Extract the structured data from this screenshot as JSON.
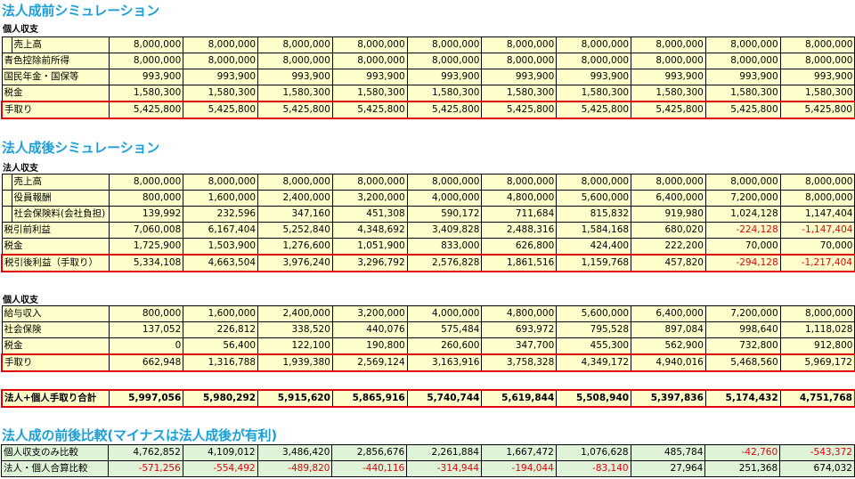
{
  "sec1": {
    "title": "法人成前シミュレーション",
    "sub": "個人収支",
    "rows": [
      {
        "label": "売上高",
        "indent": true,
        "highlight": false,
        "values": [
          "8,000,000",
          "8,000,000",
          "8,000,000",
          "8,000,000",
          "8,000,000",
          "8,000,000",
          "8,000,000",
          "8,000,000",
          "8,000,000",
          "8,000,000"
        ]
      },
      {
        "label": "青色控除前所得",
        "indent": false,
        "highlight": false,
        "values": [
          "8,000,000",
          "8,000,000",
          "8,000,000",
          "8,000,000",
          "8,000,000",
          "8,000,000",
          "8,000,000",
          "8,000,000",
          "8,000,000",
          "8,000,000"
        ]
      },
      {
        "label": "国民年金・国保等",
        "indent": false,
        "highlight": false,
        "values": [
          "993,900",
          "993,900",
          "993,900",
          "993,900",
          "993,900",
          "993,900",
          "993,900",
          "993,900",
          "993,900",
          "993,900"
        ]
      },
      {
        "label": "税金",
        "indent": false,
        "highlight": false,
        "values": [
          "1,580,300",
          "1,580,300",
          "1,580,300",
          "1,580,300",
          "1,580,300",
          "1,580,300",
          "1,580,300",
          "1,580,300",
          "1,580,300",
          "1,580,300"
        ]
      },
      {
        "label": "手取り",
        "indent": false,
        "highlight": true,
        "values": [
          "5,425,800",
          "5,425,800",
          "5,425,800",
          "5,425,800",
          "5,425,800",
          "5,425,800",
          "5,425,800",
          "5,425,800",
          "5,425,800",
          "5,425,800"
        ]
      }
    ]
  },
  "sec2": {
    "title": "法人成後シミュレーション",
    "sub": "法人収支",
    "rows": [
      {
        "label": "売上高",
        "indent": true,
        "highlight": false,
        "values": [
          "8,000,000",
          "8,000,000",
          "8,000,000",
          "8,000,000",
          "8,000,000",
          "8,000,000",
          "8,000,000",
          "8,000,000",
          "8,000,000",
          "8,000,000"
        ]
      },
      {
        "label": "役員報酬",
        "indent": true,
        "highlight": false,
        "values": [
          "800,000",
          "1,600,000",
          "2,400,000",
          "3,200,000",
          "4,000,000",
          "4,800,000",
          "5,600,000",
          "6,400,000",
          "7,200,000",
          "8,000,000"
        ]
      },
      {
        "label": "社会保険料(会社負担)",
        "indent": true,
        "highlight": false,
        "values": [
          "139,992",
          "232,596",
          "347,160",
          "451,308",
          "590,172",
          "711,684",
          "815,832",
          "919,980",
          "1,024,128",
          "1,147,404"
        ]
      },
      {
        "label": "税引前利益",
        "indent": false,
        "highlight": false,
        "values": [
          "7,060,008",
          "6,167,404",
          "5,252,840",
          "4,348,692",
          "3,409,828",
          "2,488,316",
          "1,584,168",
          "680,020",
          "-224,128",
          "-1,147,404"
        ]
      },
      {
        "label": "税金",
        "indent": false,
        "highlight": false,
        "values": [
          "1,725,900",
          "1,503,900",
          "1,276,600",
          "1,051,900",
          "833,000",
          "626,800",
          "424,400",
          "222,200",
          "70,000",
          "70,000"
        ]
      },
      {
        "label": "税引後利益（手取り）",
        "indent": false,
        "highlight": true,
        "values": [
          "5,334,108",
          "4,663,504",
          "3,976,240",
          "3,296,792",
          "2,576,828",
          "1,861,516",
          "1,159,768",
          "457,820",
          "-294,128",
          "-1,217,404"
        ]
      }
    ]
  },
  "sec3": {
    "sub": "個人収支",
    "rows": [
      {
        "label": "給与収入",
        "indent": false,
        "highlight": false,
        "values": [
          "800,000",
          "1,600,000",
          "2,400,000",
          "3,200,000",
          "4,000,000",
          "4,800,000",
          "5,600,000",
          "6,400,000",
          "7,200,000",
          "8,000,000"
        ]
      },
      {
        "label": "社会保険",
        "indent": false,
        "highlight": false,
        "values": [
          "137,052",
          "226,812",
          "338,520",
          "440,076",
          "575,484",
          "693,972",
          "795,528",
          "897,084",
          "998,640",
          "1,118,028"
        ]
      },
      {
        "label": "税金",
        "indent": false,
        "highlight": false,
        "values": [
          "0",
          "56,400",
          "122,100",
          "190,800",
          "260,600",
          "347,700",
          "455,300",
          "562,900",
          "732,800",
          "912,800"
        ]
      },
      {
        "label": "手取り",
        "indent": false,
        "highlight": true,
        "values": [
          "662,948",
          "1,316,788",
          "1,939,380",
          "2,569,124",
          "3,163,916",
          "3,758,328",
          "4,349,172",
          "4,940,016",
          "5,468,560",
          "5,969,172"
        ]
      }
    ]
  },
  "sec4": {
    "rows": [
      {
        "label": "法人+個人手取り合計",
        "indent": false,
        "highlight": true,
        "bold": true,
        "values": [
          "5,997,056",
          "5,980,292",
          "5,915,620",
          "5,865,916",
          "5,740,744",
          "5,619,844",
          "5,508,940",
          "5,397,836",
          "5,174,432",
          "4,751,768"
        ]
      }
    ]
  },
  "sec5": {
    "title": "法人成の前後比較(マイナスは法人成後が有利)",
    "rows": [
      {
        "label": "個人収支のみ比較",
        "indent": false,
        "highlight": false,
        "values": [
          "4,762,852",
          "4,109,012",
          "3,486,420",
          "2,856,676",
          "2,261,884",
          "1,667,472",
          "1,076,628",
          "485,784",
          "-42,760",
          "-543,372"
        ]
      },
      {
        "label": "法人・個人合算比較",
        "indent": false,
        "highlight": false,
        "values": [
          "-571,256",
          "-554,492",
          "-489,820",
          "-440,116",
          "-314,944",
          "-194,044",
          "-83,140",
          "27,964",
          "251,368",
          "674,032"
        ]
      }
    ]
  },
  "colors": {
    "heading": "#1aa0d8",
    "yellow": "#ffffcc",
    "green": "#dff3d8",
    "red": "#e0000a"
  }
}
